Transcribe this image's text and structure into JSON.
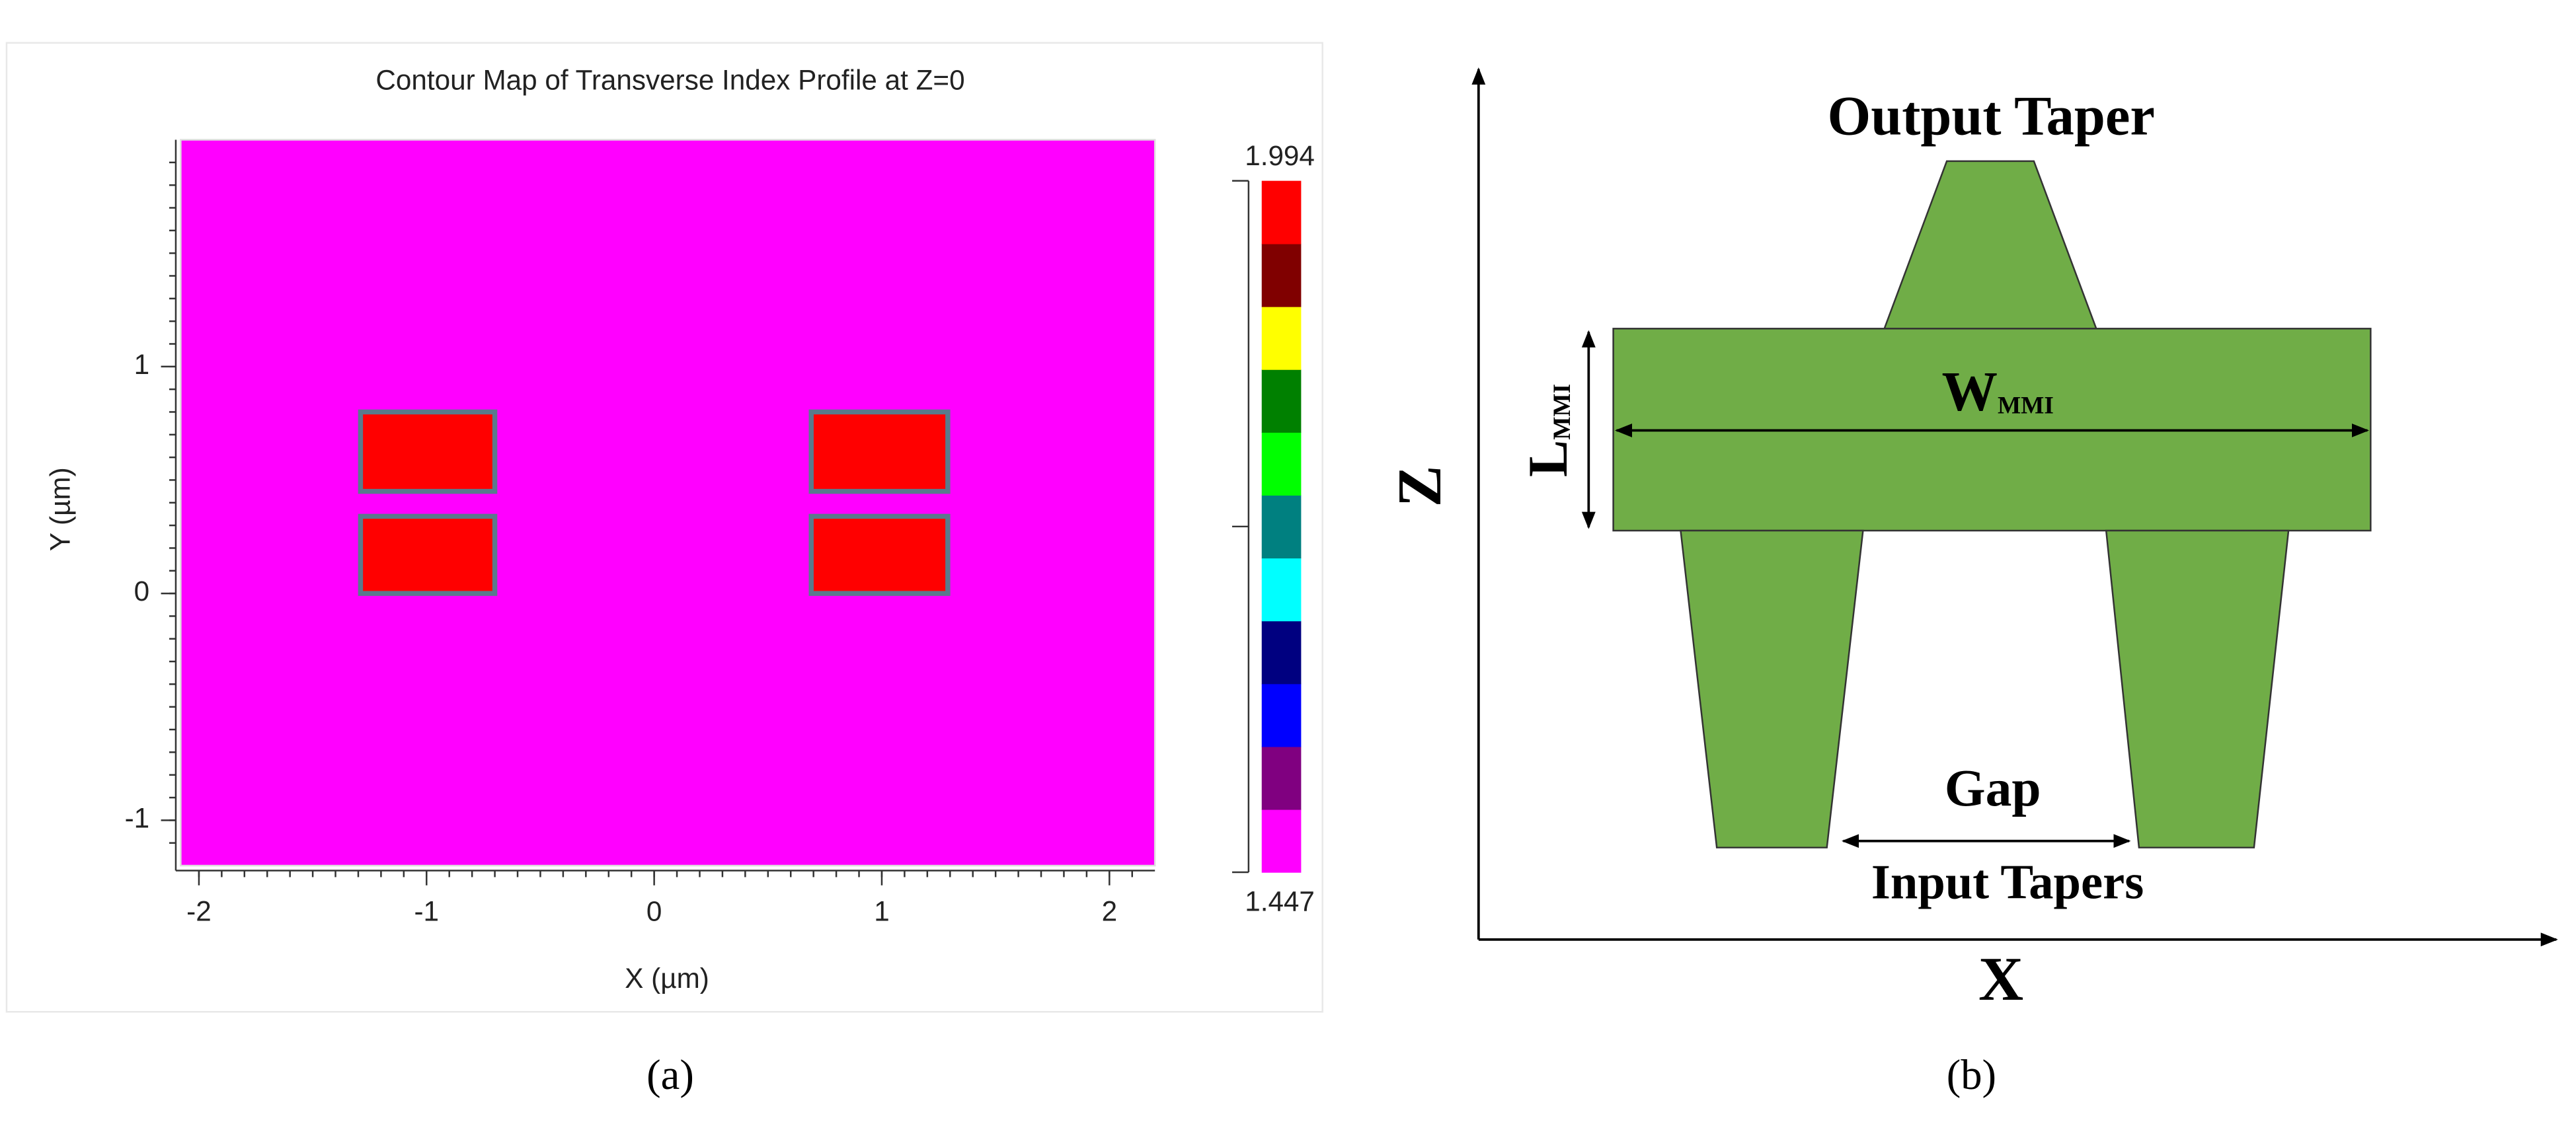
{
  "chart_data": {
    "type": "contour",
    "title": "Contour Map of Transverse Index Profile at Z=0",
    "xlabel": "X (µm)",
    "ylabel": "Y (µm)",
    "xlim": [
      -2.08,
      2.2
    ],
    "ylim": [
      -1.2,
      2.0
    ],
    "xticks": [
      -2,
      -1,
      0,
      1,
      2
    ],
    "yticks": [
      -1,
      0,
      1
    ],
    "background_value": 1.447,
    "regions": [
      {
        "x": [
          -1.29,
          -0.7
        ],
        "y": [
          0.45,
          0.8
        ],
        "value": 1.994
      },
      {
        "x": [
          -1.29,
          -0.7
        ],
        "y": [
          0.0,
          0.34
        ],
        "value": 1.994
      },
      {
        "x": [
          0.69,
          1.29
        ],
        "y": [
          0.45,
          0.8
        ],
        "value": 1.994
      },
      {
        "x": [
          0.69,
          1.29
        ],
        "y": [
          0.0,
          0.34
        ],
        "value": 1.994
      }
    ],
    "edge_color": "#5a7a8c",
    "clim": [
      1.447,
      1.994
    ],
    "colormap": [
      "#ff00ff",
      "#800080",
      "#0000ff",
      "#000080",
      "#00ffff",
      "#008080",
      "#00ff00",
      "#008000",
      "#ffff00",
      "#800000",
      "#ff0000"
    ]
  },
  "diagram": {
    "axis_z": "Z",
    "axis_x": "X",
    "output_taper": "Output Taper",
    "input_tapers": "Input Tapers",
    "gap": "Gap",
    "width_label": {
      "main": "W",
      "sub": "MMI"
    },
    "length_label": {
      "main": "L",
      "sub": "MMI"
    },
    "fill": "#70ad47"
  },
  "captions": [
    "(a)",
    "(b)"
  ]
}
